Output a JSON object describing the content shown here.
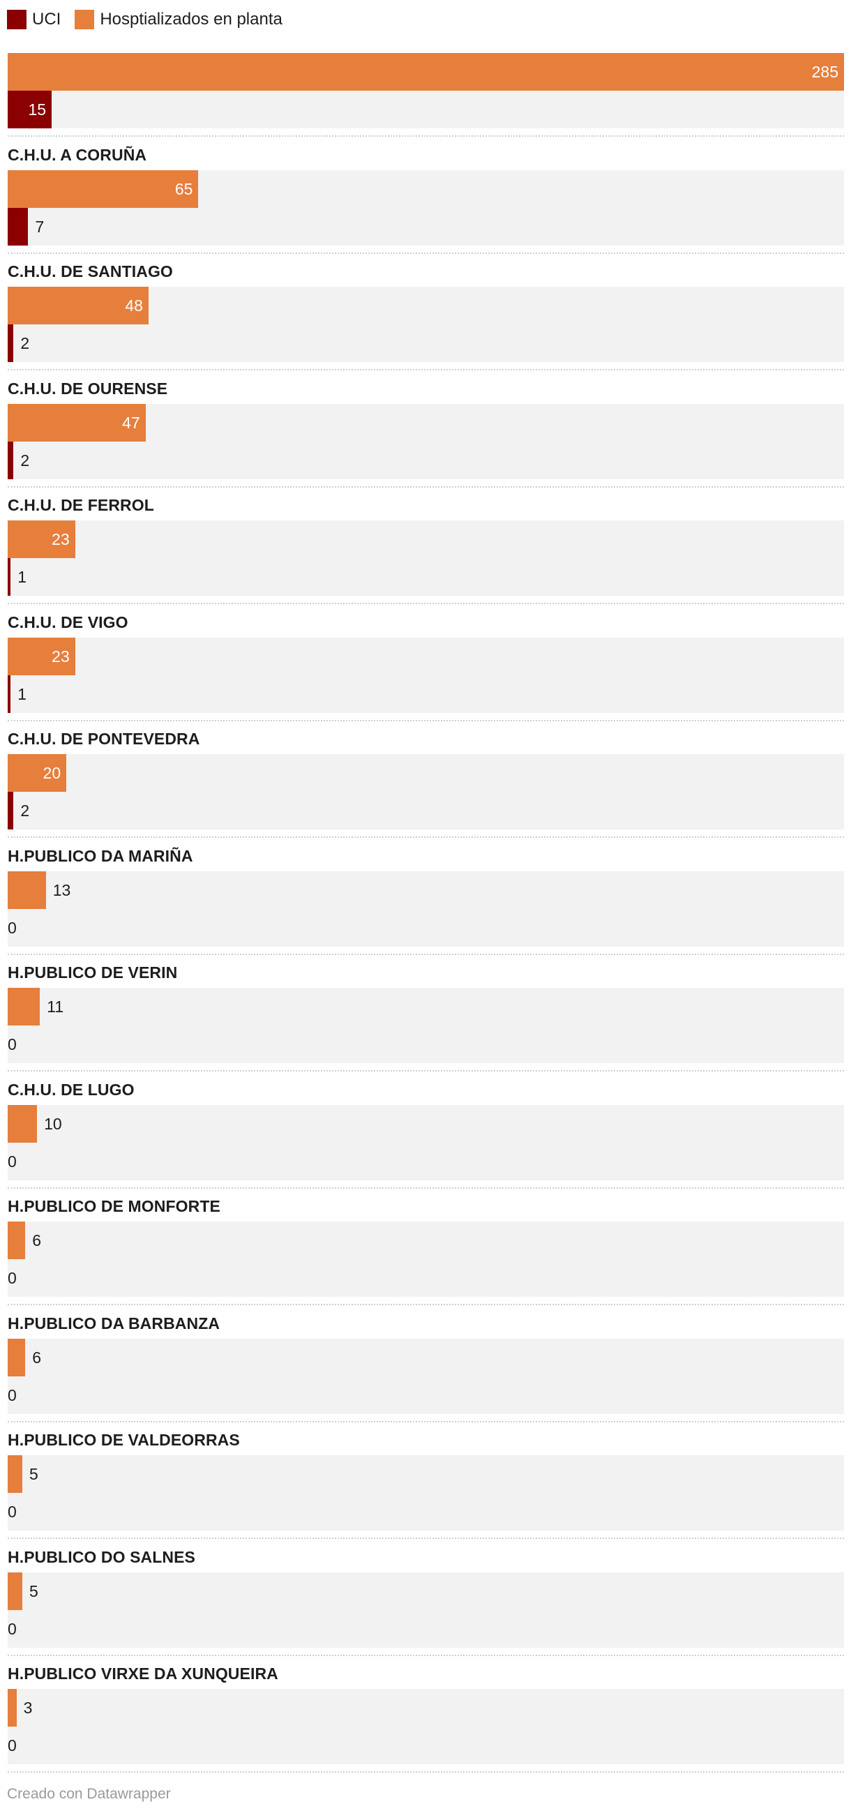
{
  "chart_data": {
    "type": "bar",
    "orientation": "horizontal",
    "grouped": true,
    "categories": [
      "",
      "C.H.U. A CORUÑA",
      "C.H.U. DE SANTIAGO",
      "C.H.U. DE OURENSE",
      "C.H.U. DE FERROL",
      "C.H.U. DE VIGO",
      "C.H.U. DE PONTEVEDRA",
      "H.PUBLICO DA MARIÑA",
      "H.PUBLICO DE VERIN",
      "C.H.U. DE LUGO",
      "H.PUBLICO DE MONFORTE",
      "H.PUBLICO DA BARBANZA",
      "H.PUBLICO DE VALDEORRAS",
      "H.PUBLICO DO SALNES",
      "H.PUBLICO VIRXE DA XUNQUEIRA"
    ],
    "series": [
      {
        "name": "Hosptializados en planta",
        "color": "#e67e3c",
        "values": [
          285,
          65,
          48,
          47,
          23,
          23,
          20,
          13,
          11,
          10,
          6,
          6,
          5,
          5,
          3
        ]
      },
      {
        "name": "UCI",
        "color": "#8b0000",
        "values": [
          15,
          7,
          2,
          2,
          1,
          1,
          2,
          0,
          0,
          0,
          0,
          0,
          0,
          0,
          0
        ]
      }
    ],
    "xlim": [
      0,
      285
    ],
    "legend_position": "top-left",
    "grid": false
  },
  "legend": [
    {
      "label": "UCI",
      "color": "#8b0000"
    },
    {
      "label": "Hosptializados en planta",
      "color": "#e67e3c"
    }
  ],
  "footer": "Creado con Datawrapper"
}
